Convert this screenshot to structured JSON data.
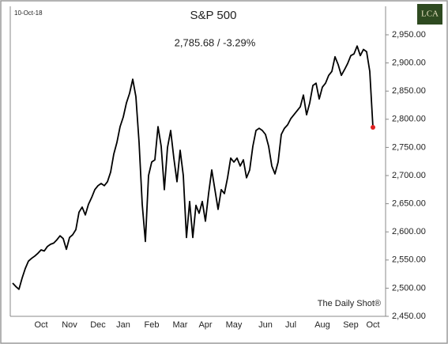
{
  "chart_data": {
    "type": "line",
    "date_label": "10-Oct-18",
    "title": "S&P 500",
    "subtitle": "2,785.68  /  -3.29%",
    "source": "The Daily Shot®",
    "logo": "LCA",
    "categories": [
      null,
      null,
      null,
      null,
      null,
      null,
      null,
      null,
      null,
      "Oct",
      null,
      null,
      null,
      null,
      null,
      null,
      null,
      null,
      "Nov",
      null,
      null,
      null,
      null,
      null,
      null,
      null,
      null,
      "Dec",
      null,
      null,
      null,
      null,
      null,
      null,
      null,
      "Jan",
      null,
      null,
      null,
      null,
      null,
      null,
      null,
      null,
      "Feb",
      null,
      null,
      null,
      null,
      null,
      null,
      null,
      null,
      "Mar",
      null,
      null,
      null,
      null,
      null,
      null,
      null,
      "Apr",
      null,
      null,
      null,
      null,
      null,
      null,
      null,
      null,
      "May",
      null,
      null,
      null,
      null,
      null,
      null,
      null,
      null,
      null,
      "Jun",
      null,
      null,
      null,
      null,
      null,
      null,
      null,
      "Jul",
      null,
      null,
      null,
      null,
      null,
      null,
      null,
      null,
      null,
      "Aug",
      null,
      null,
      null,
      null,
      null,
      null,
      null,
      null,
      "Sep",
      null,
      null,
      null,
      null,
      null,
      null,
      "Oct"
    ],
    "series": [
      {
        "name": "S&P 500",
        "color": "#000000",
        "last_point_color": "#e02020",
        "values": [
          2509,
          2503,
          2498,
          2518,
          2535,
          2548,
          2553,
          2557,
          2562,
          2568,
          2566,
          2574,
          2578,
          2580,
          2586,
          2593,
          2588,
          2569,
          2590,
          2595,
          2604,
          2635,
          2644,
          2630,
          2649,
          2661,
          2675,
          2682,
          2686,
          2682,
          2689,
          2706,
          2738,
          2759,
          2787,
          2804,
          2829,
          2846,
          2871,
          2840,
          2759,
          2649,
          2583,
          2700,
          2724,
          2728,
          2787,
          2752,
          2675,
          2750,
          2780,
          2731,
          2689,
          2745,
          2700,
          2590,
          2654,
          2590,
          2647,
          2633,
          2654,
          2619,
          2668,
          2710,
          2675,
          2640,
          2675,
          2668,
          2696,
          2731,
          2724,
          2731,
          2717,
          2728,
          2696,
          2710,
          2752,
          2780,
          2784,
          2780,
          2773,
          2752,
          2717,
          2703,
          2724,
          2773,
          2784,
          2790,
          2801,
          2808,
          2815,
          2822,
          2843,
          2808,
          2829,
          2860,
          2864,
          2836,
          2857,
          2864,
          2878,
          2885,
          2911,
          2897,
          2878,
          2888,
          2899,
          2913,
          2916,
          2930,
          2913,
          2924,
          2920,
          2885,
          2785.68
        ]
      }
    ],
    "ylim": [
      2450,
      2950
    ],
    "yticks": [
      {
        "value": 2450,
        "label": "2,450.00"
      },
      {
        "value": 2500,
        "label": "2,500.00"
      },
      {
        "value": 2550,
        "label": "2,550.00"
      },
      {
        "value": 2600,
        "label": "2,600.00"
      },
      {
        "value": 2650,
        "label": "2,650.00"
      },
      {
        "value": 2700,
        "label": "2,700.00"
      },
      {
        "value": 2750,
        "label": "2,750.00"
      },
      {
        "value": 2800,
        "label": "2,800.00"
      },
      {
        "value": 2850,
        "label": "2,850.00"
      },
      {
        "value": 2900,
        "label": "2,900.00"
      },
      {
        "value": 2950,
        "label": "2,950.00"
      }
    ],
    "y_axis_side": "right",
    "grid": false
  }
}
